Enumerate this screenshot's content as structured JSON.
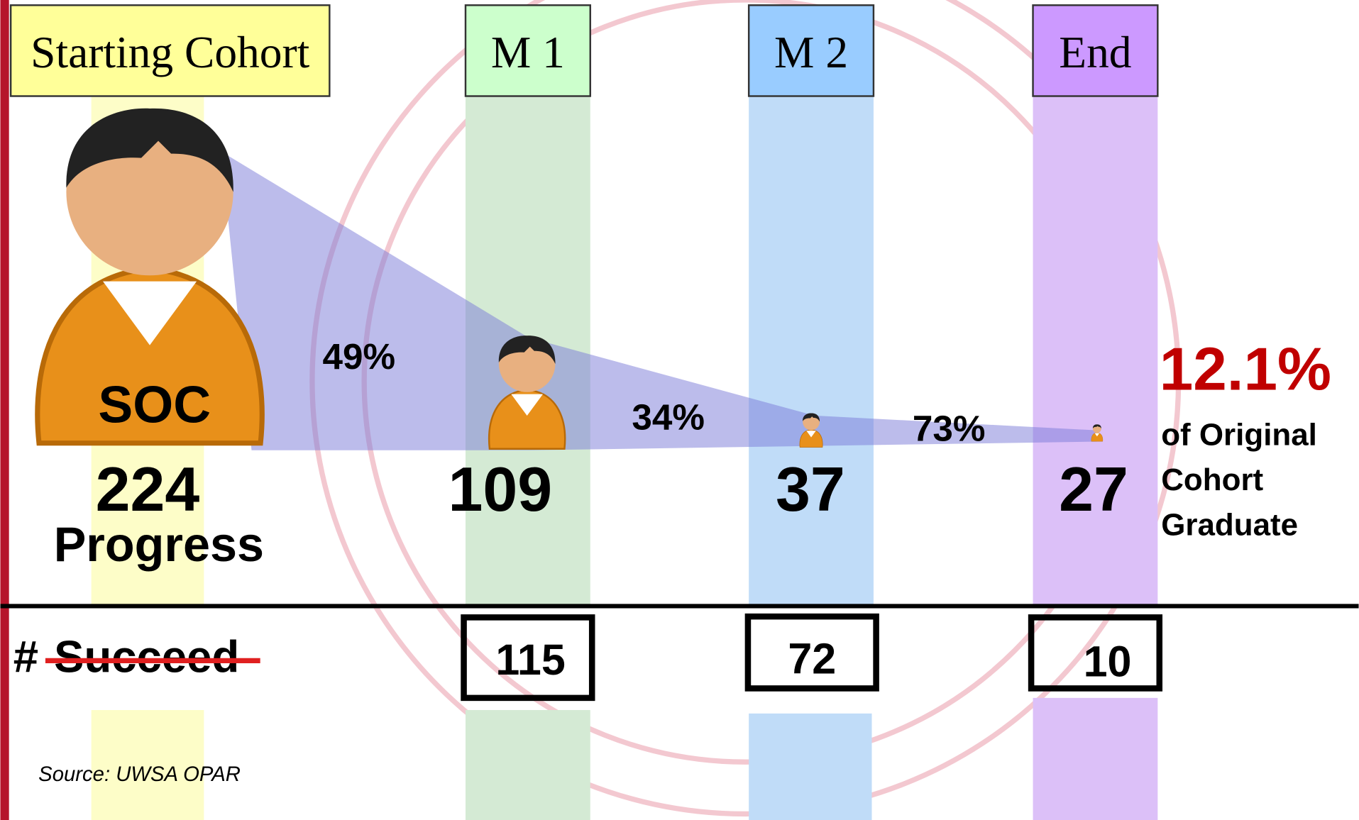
{
  "stages": [
    {
      "header": "Starting Cohort",
      "count": "224"
    },
    {
      "header": "M 1",
      "count": "109"
    },
    {
      "header": "M 2",
      "count": "37"
    },
    {
      "header": "End",
      "count": "27"
    }
  ],
  "program": "SOC",
  "row_label": "Progress",
  "rates": [
    "49%",
    "34%",
    "73%"
  ],
  "result": {
    "value": "12.1%",
    "lines": [
      "of Original",
      "Cohort",
      "Graduate"
    ]
  },
  "succeed": {
    "hash": "#",
    "label": "Succeed",
    "values": [
      "115",
      "72",
      "10"
    ]
  },
  "source": "Source: UWSA OPAR"
}
